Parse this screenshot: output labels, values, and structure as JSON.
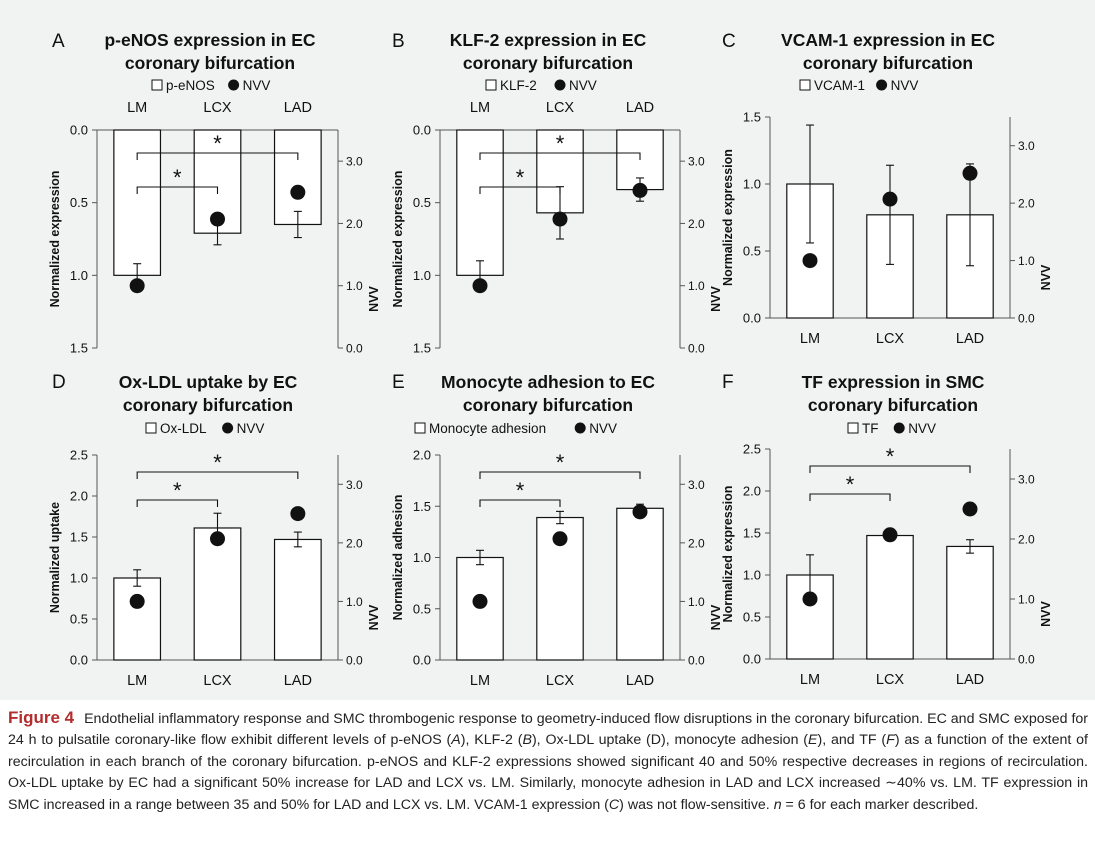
{
  "figure": {
    "chart_data": [
      {
        "type": "bar",
        "letter": "A",
        "title": [
          "p-eNOS expression in EC",
          "coronary bifurcation"
        ],
        "legend": {
          "bar": "p-eNOS",
          "dot": "NVV"
        },
        "ylabel": "Normalized expression",
        "y2label": "NVV",
        "categories": [
          "LM",
          "LCX",
          "LAD"
        ],
        "inverted": true,
        "ylim": [
          0,
          1.5
        ],
        "yticks": [
          "0.0",
          "0.5",
          "1.0",
          "1.5"
        ],
        "y2lim": [
          0,
          3.5
        ],
        "y2ticks": [
          "0.0",
          "1.0",
          "2.0",
          "3.0"
        ],
        "series": [
          {
            "name": "p-eNOS",
            "values": [
              1.0,
              0.71,
              0.65
            ],
            "errors": [
              0.08,
              0.08,
              0.09
            ]
          },
          {
            "name": "NVV",
            "values": [
              1.0,
              2.07,
              2.5
            ]
          }
        ],
        "significance": [
          {
            "from": 0,
            "to": 1,
            "label": "*"
          },
          {
            "from": 0,
            "to": 2,
            "label": "*"
          }
        ]
      },
      {
        "type": "bar",
        "letter": "B",
        "title": [
          "KLF-2 expression in EC",
          "coronary bifurcation"
        ],
        "legend": {
          "bar": "KLF-2",
          "dot": "NVV"
        },
        "ylabel": "Normalized expression",
        "y2label": "NVV",
        "categories": [
          "LM",
          "LCX",
          "LAD"
        ],
        "inverted": true,
        "ylim": [
          0,
          1.5
        ],
        "yticks": [
          "0.0",
          "0.5",
          "1.0",
          "1.5"
        ],
        "y2lim": [
          0,
          3.5
        ],
        "y2ticks": [
          "0.0",
          "1.0",
          "2.0",
          "3.0"
        ],
        "series": [
          {
            "name": "KLF-2",
            "values": [
              1.0,
              0.57,
              0.41
            ],
            "errors": [
              0.1,
              0.18,
              0.08
            ]
          },
          {
            "name": "NVV",
            "values": [
              1.0,
              2.07,
              2.53
            ]
          }
        ],
        "significance": [
          {
            "from": 0,
            "to": 1,
            "label": "*"
          },
          {
            "from": 0,
            "to": 2,
            "label": "*"
          }
        ]
      },
      {
        "type": "bar",
        "letter": "C",
        "title": [
          "VCAM-1 expression in EC",
          "coronary bifurcation"
        ],
        "legend": {
          "bar": "VCAM-1",
          "dot": "NVV"
        },
        "ylabel": "Normalized expression",
        "y2label": "NVV",
        "categories": [
          "LM",
          "LCX",
          "LAD"
        ],
        "inverted": false,
        "ylim": [
          0,
          1.5
        ],
        "yticks": [
          "0.0",
          "0.5",
          "1.0",
          "1.5"
        ],
        "y2lim": [
          0,
          3.5
        ],
        "y2ticks": [
          "0.0",
          "1.0",
          "2.0",
          "3.0"
        ],
        "series": [
          {
            "name": "VCAM-1",
            "values": [
              1.0,
              0.77,
              0.77
            ],
            "errors": [
              0.44,
              0.37,
              0.38
            ]
          },
          {
            "name": "NVV",
            "values": [
              1.0,
              2.07,
              2.52
            ]
          }
        ],
        "significance": []
      },
      {
        "type": "bar",
        "letter": "D",
        "title": [
          "Ox-LDL uptake by EC",
          "coronary bifurcation"
        ],
        "legend": {
          "bar": "Ox-LDL",
          "dot": "NVV"
        },
        "ylabel": "Normalized uptake",
        "y2label": "NVV",
        "categories": [
          "LM",
          "LCX",
          "LAD"
        ],
        "inverted": false,
        "ylim": [
          0,
          2.5
        ],
        "yticks": [
          "0.0",
          "0.5",
          "1.0",
          "1.5",
          "2.0",
          "2.5"
        ],
        "y2lim": [
          0,
          3.5
        ],
        "y2ticks": [
          "0.0",
          "1.0",
          "2.0",
          "3.0"
        ],
        "series": [
          {
            "name": "Ox-LDL",
            "values": [
              1.0,
              1.61,
              1.47
            ],
            "errors": [
              0.1,
              0.18,
              0.09
            ]
          },
          {
            "name": "NVV",
            "values": [
              1.0,
              2.07,
              2.5
            ]
          }
        ],
        "significance": [
          {
            "from": 0,
            "to": 1,
            "label": "*"
          },
          {
            "from": 0,
            "to": 2,
            "label": "*"
          }
        ]
      },
      {
        "type": "bar",
        "letter": "E",
        "title": [
          "Monocyte adhesion to EC",
          "coronary bifurcation"
        ],
        "legend": {
          "bar": "Monocyte adhesion",
          "dot": "NVV"
        },
        "ylabel": "Normalized adhesion",
        "y2label": "NVV",
        "categories": [
          "LM",
          "LCX",
          "LAD"
        ],
        "inverted": false,
        "ylim": [
          0,
          2.0
        ],
        "yticks": [
          "0.0",
          "0.5",
          "1.0",
          "1.5",
          "2.0"
        ],
        "y2lim": [
          0,
          3.5
        ],
        "y2ticks": [
          "0.0",
          "1.0",
          "2.0",
          "3.0"
        ],
        "series": [
          {
            "name": "Monocyte adhesion",
            "values": [
              1.0,
              1.39,
              1.48
            ],
            "errors": [
              0.07,
              0.06,
              0.04
            ]
          },
          {
            "name": "NVV",
            "values": [
              1.0,
              2.07,
              2.53
            ]
          }
        ],
        "significance": [
          {
            "from": 0,
            "to": 1,
            "label": "*"
          },
          {
            "from": 0,
            "to": 2,
            "label": "*"
          }
        ]
      },
      {
        "type": "bar",
        "letter": "F",
        "title": [
          "TF expression in SMC",
          "coronary bifurcation"
        ],
        "legend": {
          "bar": "TF",
          "dot": "NVV"
        },
        "ylabel": "Normalized expression",
        "y2label": "NVV",
        "categories": [
          "LM",
          "LCX",
          "LAD"
        ],
        "inverted": false,
        "ylim": [
          0,
          2.5
        ],
        "yticks": [
          "0.0",
          "0.5",
          "1.0",
          "1.5",
          "2.0",
          "2.5"
        ],
        "y2lim": [
          0,
          3.5
        ],
        "y2ticks": [
          "0.0",
          "1.0",
          "2.0",
          "3.0"
        ],
        "series": [
          {
            "name": "TF",
            "values": [
              1.0,
              1.47,
              1.34
            ],
            "errors": [
              0.24,
              0.05,
              0.08
            ]
          },
          {
            "name": "NVV",
            "values": [
              1.0,
              2.07,
              2.5
            ]
          }
        ],
        "significance": [
          {
            "from": 0,
            "to": 1,
            "label": "*"
          },
          {
            "from": 0,
            "to": 2,
            "label": "*"
          }
        ]
      }
    ]
  },
  "caption": {
    "label": "Figure 4",
    "parts": [
      {
        "t": "Endothelial inflammatory response and SMC thrombogenic response to geometry-induced flow disruptions in the coronary bifurcation. EC and SMC exposed for 24 h to pulsatile coronary-like flow exhibit different levels of p-eNOS ("
      },
      {
        "t": "A",
        "i": true
      },
      {
        "t": "), KLF-2 ("
      },
      {
        "t": "B",
        "i": true
      },
      {
        "t": "), Ox-LDL uptake (D), monocyte adhesion ("
      },
      {
        "t": "E",
        "i": true
      },
      {
        "t": "), and TF ("
      },
      {
        "t": "F",
        "i": true
      },
      {
        "t": ") as a function of the extent of recirculation in each branch of the coronary bifurcation. p-eNOS and KLF-2 expressions showed significant 40 and 50% respective decreases in regions of recirculation. Ox-LDL uptake by EC had a significant 50% increase for LAD and LCX vs. LM. Similarly, monocyte adhesion in LAD and LCX increased ∼40% vs. LM. TF expression in SMC increased in a range between 35 and 50% for LAD and LCX vs. LM. VCAM-1 expression ("
      },
      {
        "t": "C",
        "i": true
      },
      {
        "t": ") was not flow-sensitive. "
      },
      {
        "t": "n",
        "i": true
      },
      {
        "t": " = 6 for each marker described."
      }
    ]
  }
}
